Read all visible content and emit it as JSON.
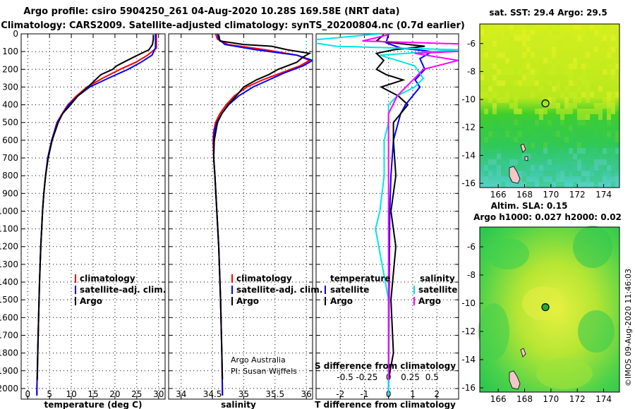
{
  "header": {
    "title_line1": "Argo profile: csiro 5904250_261 04-Aug-2020 10.28S 169.58E (NRT data)",
    "title_line2": "Climatology: CARS2009. Satellite-adjusted climatology: synTS_20200804.nc (0.7d earlier)"
  },
  "depth_axis": {
    "ticks": [
      "0",
      "100",
      "200",
      "300",
      "400",
      "500",
      "600",
      "700",
      "800",
      "900",
      "1000",
      "1100",
      "1200",
      "1300",
      "1400",
      "1500",
      "1600",
      "1700",
      "1800",
      "1900",
      "2000"
    ],
    "range": [
      0,
      2060
    ]
  },
  "colors": {
    "climatology": "#ff0000",
    "satellite": "#0000ff",
    "argo": "#000000",
    "sat_salinity": "#00e5e5",
    "argo_salinity": "#ff00ff"
  },
  "chart_data": [
    {
      "type": "line",
      "name": "temperature",
      "xlabel": "temperature (deg C)",
      "xlim": [
        -1.5,
        31.5
      ],
      "xticks": [
        "0",
        "5",
        "10",
        "15",
        "20",
        "25",
        "30"
      ],
      "xtick_values": [
        0,
        5,
        10,
        15,
        20,
        25,
        30
      ],
      "legend": [
        "climatology",
        "satellite-adj. clim.",
        "Argo"
      ],
      "series": [
        {
          "name": "climatology",
          "depth": [
            0,
            20,
            50,
            80,
            120,
            160,
            200,
            250,
            300,
            350,
            400,
            450,
            500,
            600,
            700,
            800,
            900,
            1000,
            1200,
            1400,
            1600,
            1800,
            2000,
            2040
          ],
          "values": [
            29.5,
            29.5,
            29.5,
            29.5,
            27.5,
            24.8,
            21.2,
            17.2,
            13.6,
            11.2,
            9.2,
            7.9,
            6.7,
            5.5,
            4.6,
            4.1,
            3.7,
            3.4,
            3.0,
            2.7,
            2.5,
            2.3,
            2.1,
            2.1
          ]
        },
        {
          "name": "satellite-adj. clim.",
          "depth": [
            0,
            20,
            50,
            80,
            120,
            160,
            200,
            250,
            300,
            350,
            400,
            450,
            500,
            600,
            700,
            800,
            900,
            1000,
            1200,
            1400,
            1600,
            1800,
            2000,
            2040
          ],
          "values": [
            29.3,
            29.3,
            29.3,
            29.3,
            28.5,
            26.0,
            23.0,
            18.5,
            14.2,
            11.5,
            9.4,
            8.0,
            6.8,
            5.5,
            4.6,
            4.1,
            3.7,
            3.4,
            3.0,
            2.7,
            2.5,
            2.3,
            2.1,
            2.1
          ]
        },
        {
          "name": "Argo",
          "depth": [
            5,
            30,
            60,
            90,
            120,
            150,
            180,
            200,
            230,
            260,
            300,
            350,
            400,
            450,
            500,
            600,
            700,
            800,
            900,
            1000,
            1200,
            1400,
            1600,
            1800,
            1950
          ],
          "values": [
            28.8,
            28.8,
            28.6,
            27.8,
            25.2,
            22.8,
            20.4,
            19.5,
            16.8,
            15.5,
            13.8,
            11.5,
            9.8,
            8.0,
            7.0,
            5.6,
            4.7,
            4.1,
            3.7,
            3.4,
            3.0,
            2.7,
            2.5,
            2.3,
            2.2
          ]
        }
      ]
    },
    {
      "type": "line",
      "name": "salinity",
      "xlabel": "salinity",
      "xlim": [
        33.8,
        36.1
      ],
      "xticks": [
        "34",
        "34.5",
        "35",
        "35.5",
        "36"
      ],
      "xtick_values": [
        34,
        34.5,
        35,
        35.5,
        36
      ],
      "legend": [
        "climatology",
        "satellite-adj. clim.",
        "Argo"
      ],
      "note_lines": [
        "Argo Australia",
        "PI: Susan Wijffels"
      ],
      "series": [
        {
          "name": "climatology",
          "depth": [
            0,
            30,
            60,
            90,
            120,
            150,
            180,
            220,
            260,
            300,
            350,
            400,
            450,
            500,
            550,
            600,
            700,
            800,
            1000,
            1200,
            1500,
            1800,
            2040
          ],
          "values": [
            34.55,
            34.58,
            34.75,
            35.35,
            35.85,
            36.05,
            35.9,
            35.6,
            35.3,
            35.05,
            34.85,
            34.72,
            34.62,
            34.55,
            34.52,
            34.51,
            34.52,
            34.54,
            34.57,
            34.6,
            34.63,
            34.65,
            34.66
          ]
        },
        {
          "name": "satellite-adj. clim.",
          "depth": [
            0,
            30,
            60,
            90,
            120,
            150,
            180,
            220,
            260,
            300,
            350,
            400,
            450,
            500,
            550,
            600,
            700,
            800,
            1000,
            1200,
            1500,
            1800,
            2040
          ],
          "values": [
            34.58,
            34.6,
            34.7,
            35.2,
            35.85,
            36.1,
            35.95,
            35.65,
            35.4,
            35.15,
            34.92,
            34.76,
            34.65,
            34.57,
            34.53,
            34.52,
            34.52,
            34.54,
            34.57,
            34.6,
            34.63,
            34.65,
            34.66
          ]
        },
        {
          "name": "Argo",
          "depth": [
            5,
            40,
            60,
            70,
            90,
            110,
            130,
            160,
            200,
            230,
            260,
            300,
            350,
            400,
            450,
            500,
            600,
            700,
            800,
            1000,
            1200,
            1500,
            1800,
            1950
          ],
          "values": [
            34.6,
            34.62,
            35.0,
            35.45,
            35.7,
            36.05,
            35.95,
            35.85,
            35.55,
            35.4,
            35.2,
            35.0,
            34.88,
            34.75,
            34.65,
            34.58,
            34.53,
            34.52,
            34.54,
            34.57,
            34.6,
            34.63,
            34.65,
            34.66
          ]
        }
      ]
    },
    {
      "type": "line",
      "name": "differences",
      "xlabel": "T difference from climatology",
      "xlabel_top": "S difference from climatology",
      "xlim": [
        -3.0,
        2.9
      ],
      "xticks": [
        "-2",
        "-1",
        "0",
        "1",
        "2"
      ],
      "xtick_values": [
        -2,
        -1,
        0,
        1,
        2
      ],
      "s_ticks": [
        "-0.5",
        "-0.25",
        "0",
        "0.25",
        "0.5"
      ],
      "s_tick_values": [
        -0.5,
        -0.25,
        0,
        0.25,
        0.5
      ],
      "legend_left_title": "temperature",
      "legend_right_title": "salinity",
      "legend_left": [
        "satellite",
        "Argo"
      ],
      "legend_right": [
        "satellite",
        "Argo"
      ],
      "series": [
        {
          "name": "T satellite",
          "depth": [
            0,
            50,
            80,
            100,
            140,
            200,
            260,
            300,
            350,
            400,
            450,
            500,
            600,
            800,
            1000,
            1500,
            2040
          ],
          "values": [
            0.0,
            -0.1,
            0.5,
            1.8,
            1.3,
            1.5,
            1.1,
            1.3,
            1.0,
            0.7,
            0.5,
            0.4,
            0.2,
            0.1,
            0.05,
            0.02,
            0.0
          ]
        },
        {
          "name": "T Argo",
          "depth": [
            5,
            40,
            70,
            90,
            110,
            150,
            200,
            230,
            260,
            300,
            350,
            400,
            450,
            500,
            600,
            800,
            1000,
            1200,
            1500,
            1800,
            1950
          ],
          "values": [
            -0.2,
            -0.5,
            1.5,
            0.2,
            -0.5,
            -0.2,
            -0.5,
            -0.1,
            0.6,
            -0.3,
            0.4,
            0.8,
            0.5,
            0.2,
            0.2,
            0.3,
            0.1,
            0.3,
            0.1,
            0.2,
            0.0
          ]
        },
        {
          "name": "S satellite",
          "depth": [
            0,
            40,
            70,
            90,
            120,
            180,
            250,
            300,
            350,
            400,
            500,
            600,
            800,
            1000,
            1100,
            1500,
            2040
          ],
          "values": [
            -0.1,
            -1.0,
            -0.6,
            0.8,
            -0.1,
            0.3,
            0.4,
            0.3,
            0.1,
            0.0,
            0.0,
            -0.05,
            -0.05,
            -0.1,
            -0.15,
            0.0,
            0.0
          ]
        },
        {
          "name": "S Argo",
          "depth": [
            5,
            40,
            70,
            90,
            110,
            150,
            200,
            250,
            300,
            350,
            400,
            450,
            500,
            600,
            800,
            1000,
            1500,
            1950
          ],
          "values": [
            0.0,
            -0.3,
            1.7,
            1.2,
            0.3,
            0.8,
            0.4,
            0.3,
            0.2,
            0.1,
            0.05,
            0.0,
            0.0,
            0.0,
            0.0,
            0.0,
            0.0,
            0.0
          ]
        }
      ]
    },
    {
      "type": "heatmap",
      "name": "sst-map",
      "title": "sat. SST: 29.4 Argo: 29.5",
      "xticks": [
        "166",
        "168",
        "170",
        "172",
        "174"
      ],
      "xtick_values": [
        166,
        168,
        170,
        172,
        174
      ],
      "yticks": [
        "-6",
        "-8",
        "-10",
        "-12",
        "-14",
        "-16"
      ],
      "ytick_values": [
        -6,
        -8,
        -10,
        -12,
        -14,
        -16
      ],
      "xlim": [
        164.6,
        175.2
      ],
      "ylim": [
        -16.3,
        -4.6
      ],
      "argo_position": [
        169.58,
        -10.28
      ]
    },
    {
      "type": "heatmap",
      "name": "sla-map",
      "title_line1": "Altim. SLA: 0.15",
      "title_line2": "Argo h1000: 0.027 h2000: 0.02",
      "xticks": [
        "166",
        "168",
        "170",
        "172",
        "174"
      ],
      "xtick_values": [
        166,
        168,
        170,
        172,
        174
      ],
      "yticks": [
        "-6",
        "-8",
        "-10",
        "-12",
        "-14",
        "-16"
      ],
      "ytick_values": [
        -6,
        -8,
        -10,
        -12,
        -14,
        -16
      ],
      "xlim": [
        164.6,
        175.2
      ],
      "ylim": [
        -16.3,
        -4.6
      ],
      "argo_position": [
        169.58,
        -10.28
      ]
    }
  ],
  "credit": "©IMOS 09-Aug-2020 11:46:03"
}
